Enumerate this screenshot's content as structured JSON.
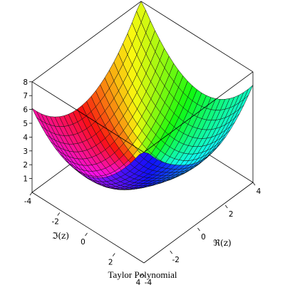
{
  "chart_data": {
    "type": "surface3d",
    "title": "Taylor Polynomial",
    "surface": {
      "expression": "|f(z)| approx",
      "x_range": [
        -4,
        4
      ],
      "y_range": [
        -4,
        4
      ],
      "grid": 24,
      "colormap": "rainbow",
      "mesh": true
    },
    "axes": {
      "z": {
        "ticks": [
          "1",
          "2",
          "3",
          "4",
          "5",
          "6",
          "7",
          "8"
        ],
        "range": [
          0,
          8
        ]
      },
      "im": {
        "label": "ℑ(z)",
        "ticks": [
          "-4",
          "-2",
          "0",
          "2",
          "4"
        ]
      },
      "re": {
        "label": "ℜ(z)",
        "ticks": [
          "-4",
          "-2",
          "0",
          "2",
          "4"
        ]
      }
    },
    "box": true
  }
}
